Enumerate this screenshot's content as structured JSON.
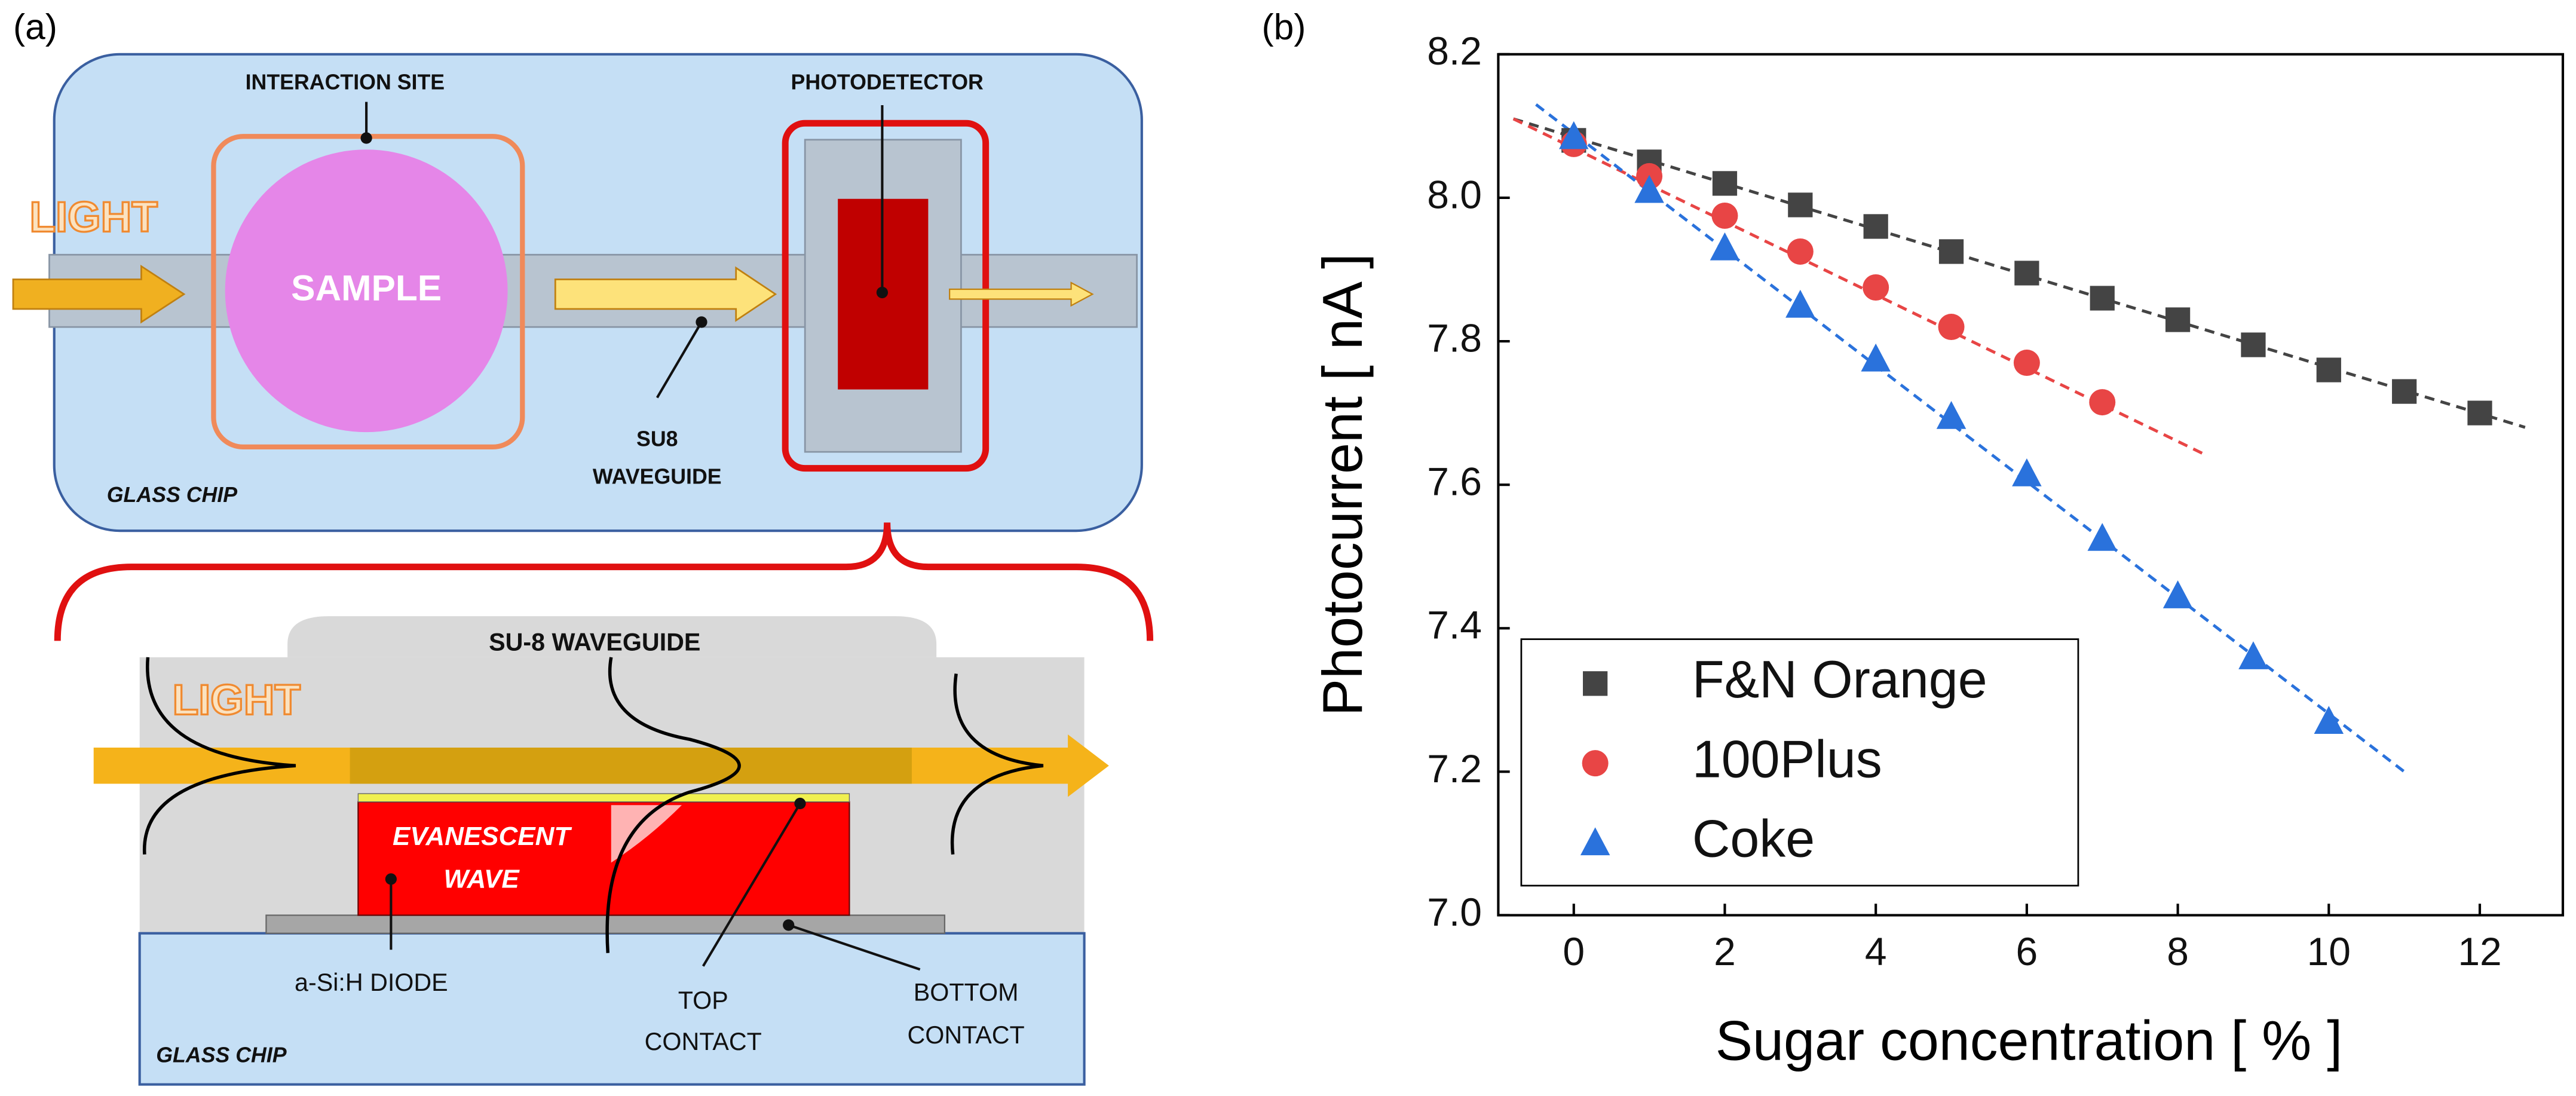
{
  "panel_a": {
    "label": "(a)",
    "top": {
      "interaction_site": "INTERACTION SITE",
      "photodetector": "PHOTODETECTOR",
      "light": "LIGHT",
      "sample": "SAMPLE",
      "waveguide": [
        "SU8",
        "WAVEGUIDE"
      ],
      "glass_chip": "GLASS CHIP"
    },
    "bottom": {
      "waveguide": "SU-8 WAVEGUIDE",
      "light": "LIGHT",
      "evanescent": [
        "EVANESCENT",
        "WAVE"
      ],
      "diode": "a-Si:H DIODE",
      "top_contact": [
        "TOP",
        "CONTACT"
      ],
      "bottom_contact": [
        "BOTTOM",
        "CONTACT"
      ],
      "glass_chip": "GLASS CHIP"
    }
  },
  "chart_data": {
    "type": "scatter",
    "panel_label": "(b)",
    "x_label": "Sugar concentration [ % ]",
    "y_label": "Photocurrent [ nA ]",
    "xlim": [
      -1,
      13.1
    ],
    "ylim": [
      7.0,
      8.2
    ],
    "xticks": [
      0,
      2,
      4,
      6,
      8,
      10,
      12
    ],
    "yticks": [
      {
        "value": 7.0,
        "label": "7.0"
      },
      7.2,
      7.4,
      7.6,
      7.8,
      {
        "value": 8.0,
        "label": "8.0"
      },
      8.2
    ],
    "legend": "lower left",
    "series": [
      {
        "name": "F&N Orange",
        "color": "#444444",
        "marker": "square",
        "x": [
          0,
          1,
          2,
          3,
          4,
          5,
          6,
          7,
          8,
          9,
          10,
          11,
          12
        ],
        "values": [
          8.08,
          8.05,
          8.02,
          7.99,
          7.96,
          7.925,
          7.895,
          7.86,
          7.83,
          7.795,
          7.76,
          7.73,
          7.7
        ],
        "fit_x": [
          -0.8,
          12.6
        ],
        "fit_y": [
          8.11,
          7.68
        ]
      },
      {
        "name": "100Plus",
        "color": "#e84545",
        "marker": "circle",
        "x": [
          0,
          1,
          2,
          3,
          4,
          5,
          6,
          7
        ],
        "values": [
          8.075,
          8.03,
          7.975,
          7.925,
          7.875,
          7.82,
          7.77,
          7.715
        ],
        "fit_x": [
          -0.8,
          8.4
        ],
        "fit_y": [
          8.11,
          7.64
        ]
      },
      {
        "name": "Coke",
        "color": "#2a72dc",
        "marker": "triangle",
        "x": [
          0,
          1,
          2,
          3,
          4,
          5,
          6,
          7,
          8,
          9,
          10
        ],
        "values": [
          8.085,
          8.01,
          7.93,
          7.85,
          7.775,
          7.695,
          7.615,
          7.525,
          7.445,
          7.36,
          7.27
        ],
        "fit_x": [
          -0.5,
          11
        ],
        "fit_y": [
          8.13,
          7.2
        ]
      }
    ]
  }
}
